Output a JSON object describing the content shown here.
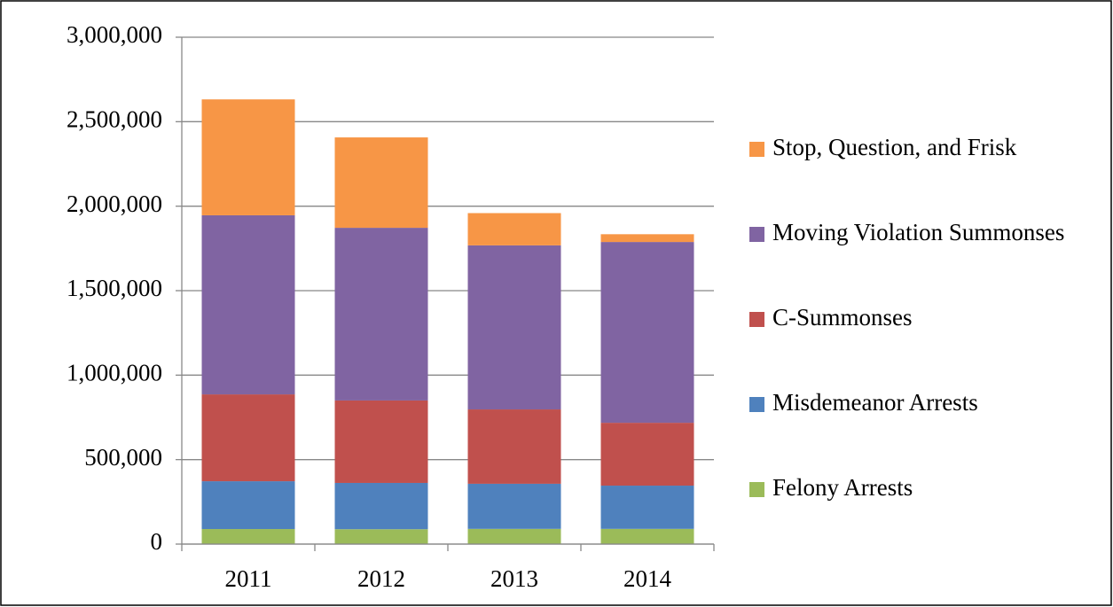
{
  "chart_data": {
    "type": "stacked_bar",
    "categories": [
      "2011",
      "2012",
      "2013",
      "2014"
    ],
    "series": [
      {
        "name": "Felony Arrests",
        "color": "#9bbb59",
        "values": [
          89000,
          88000,
          90000,
          90000
        ]
      },
      {
        "name": "Misdemeanor Arrests",
        "color": "#4f81bd",
        "values": [
          283000,
          274000,
          267000,
          256000
        ]
      },
      {
        "name": "C-Summonses",
        "color": "#c0504d",
        "values": [
          514000,
          488000,
          440000,
          372000
        ]
      },
      {
        "name": "Moving Violation Summonses",
        "color": "#8064a2",
        "values": [
          1060000,
          1022000,
          971000,
          1070000
        ]
      },
      {
        "name": "Stop, Question, and Frisk",
        "color": "#f79646",
        "values": [
          686000,
          535000,
          191000,
          46000
        ]
      }
    ],
    "ylim": [
      0,
      3000000
    ],
    "yticks": [
      0,
      {
        "value": 500000,
        "label": "500,000"
      },
      {
        "value": 1000000,
        "label": "1,000,000"
      },
      {
        "value": 1500000,
        "label": "1,500,000"
      },
      {
        "value": 2000000,
        "label": "2,000,000"
      },
      {
        "value": 2500000,
        "label": "2,500,000"
      },
      {
        "value": 3000000,
        "label": "3,000,000"
      }
    ],
    "grid": true,
    "legend": "right"
  }
}
